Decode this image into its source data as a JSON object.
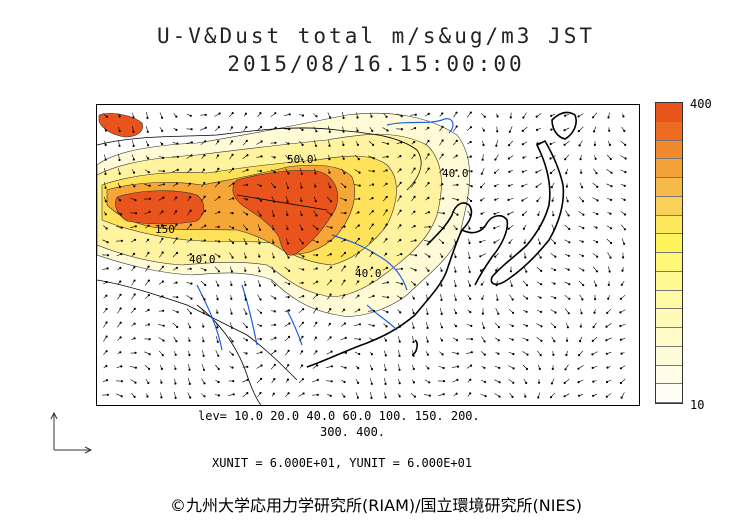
{
  "header": {
    "title_line1": "U-V&Dust total m/s&ug/m3 JST",
    "title_line2": "2015/08/16.15:00:00"
  },
  "colorbar": {
    "max_label": "400",
    "min_label": "10",
    "colors_top_to_bottom": [
      "#e8541c",
      "#ee6b22",
      "#f08a2c",
      "#f3a23a",
      "#f7bb4a",
      "#fad059",
      "#fde85e",
      "#fff45a",
      "#fff778",
      "#fff890",
      "#fff9a4",
      "#fffab6",
      "#fffbc8",
      "#fffcd8",
      "#fffde8",
      "#fffef4"
    ]
  },
  "legend": {
    "levels_line1": "lev= 10.0 20.0 40.0 60.0 100. 150. 200.",
    "levels_line2": "300. 400.",
    "units_line": "XUNIT = 6.000E+01, YUNIT = 6.000E+01"
  },
  "map": {
    "contour_labels": [
      "50.0",
      "40.0",
      "150",
      "40.0",
      "40.0"
    ],
    "palette": {
      "extreme": "#e8541c",
      "high": "#f5a637",
      "mid": "#fde25a",
      "low": "#fff3a0",
      "faint": "#fffbd6",
      "coast": "#000000",
      "river": "#1f5fe0"
    }
  },
  "footer": {
    "copyright": "©九州大学応用力学研究所(RIAM)/国立環境研究所(NIES)"
  }
}
